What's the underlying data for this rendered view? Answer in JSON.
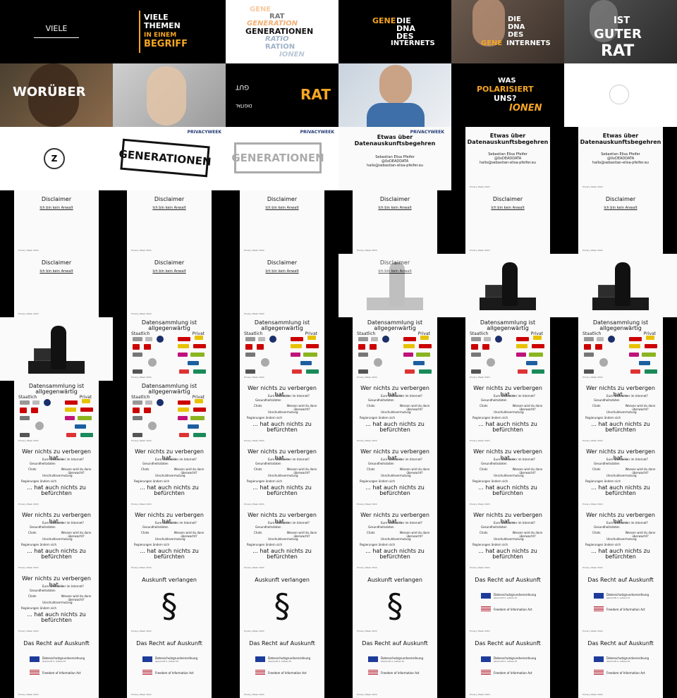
{
  "tiles": {
    "r1": {
      "t1": "VIELE",
      "t2": {
        "l1": "VIELE",
        "l2": "THEMEN",
        "l3": "IN EINEM",
        "l4": "BEGRIFF"
      },
      "t3": {
        "l1": "GENE",
        "l2": "RAT",
        "l3": "GENERATION",
        "l4": "GENERATIONEN",
        "l5": "RATIO",
        "l6": "RATION",
        "l7": "IONEN"
      },
      "t4": {
        "l1": "GENE",
        "l2": "DIE",
        "l3": "DNA",
        "l4": "DES",
        "l5": "INTERNETS"
      },
      "t5": {
        "l1": "DIE",
        "l2": "DNA",
        "l3": "DES",
        "l4": "GENE",
        "l5": "INTERNETS"
      },
      "t6": {
        "l1": "IST",
        "l2": "GUTER",
        "l3": "RAT"
      }
    },
    "r2": {
      "t1": "WORÜBER",
      "t3": {
        "l1": "RAT"
      },
      "t5": {
        "l1": "WAS",
        "l2": "POLARISIERT",
        "l3": "UNS?",
        "l4": "IONEN"
      }
    },
    "r3": {
      "privacy": "PRIVACYWEEK",
      "gen": "GENERATIONEN",
      "title1": "Etwas über",
      "title2": "Datenauskunftsbegehren",
      "name": "Sebastian Elisa Pfeifer",
      "handle": "@0xDEADDATA",
      "mail": "hallo@sebastian-elisa-pfeifer.eu"
    },
    "disclaimer": {
      "title": "Disclaimer",
      "sub": "Ich bin kein Anwalt",
      "foot": "Privacy Week 2024"
    },
    "datensammlung": {
      "title1": "Datensammlung ist",
      "title2": "allgegenwärtig",
      "left": "Staatlich",
      "right": "Privat"
    },
    "verbergen": {
      "title": "Wer nichts zu verbergen hat...",
      "q1": "Eure Nacktbilder im Internet?",
      "q2": "Gesundheitsdaten",
      "q3": "Chats",
      "q4": "Wessen wird du dann überwacht?",
      "q5": "Unschuldsvermutung",
      "q6": "Regierungen ändern sich",
      "end1": "... hat auch nichts zu",
      "end2": "befürchten"
    },
    "auskunft": {
      "title": "Auskunft verlangen",
      "sym": "§"
    },
    "recht": {
      "title": "Das Recht auf Auskunft",
      "eu": "Datenschutzgrundverordnung",
      "eu2": "Abschnitt 2, Artikel 15",
      "us": "Freedom of Information Act"
    }
  },
  "colors": {
    "orange": "#f5a623",
    "navy": "#223a74"
  }
}
